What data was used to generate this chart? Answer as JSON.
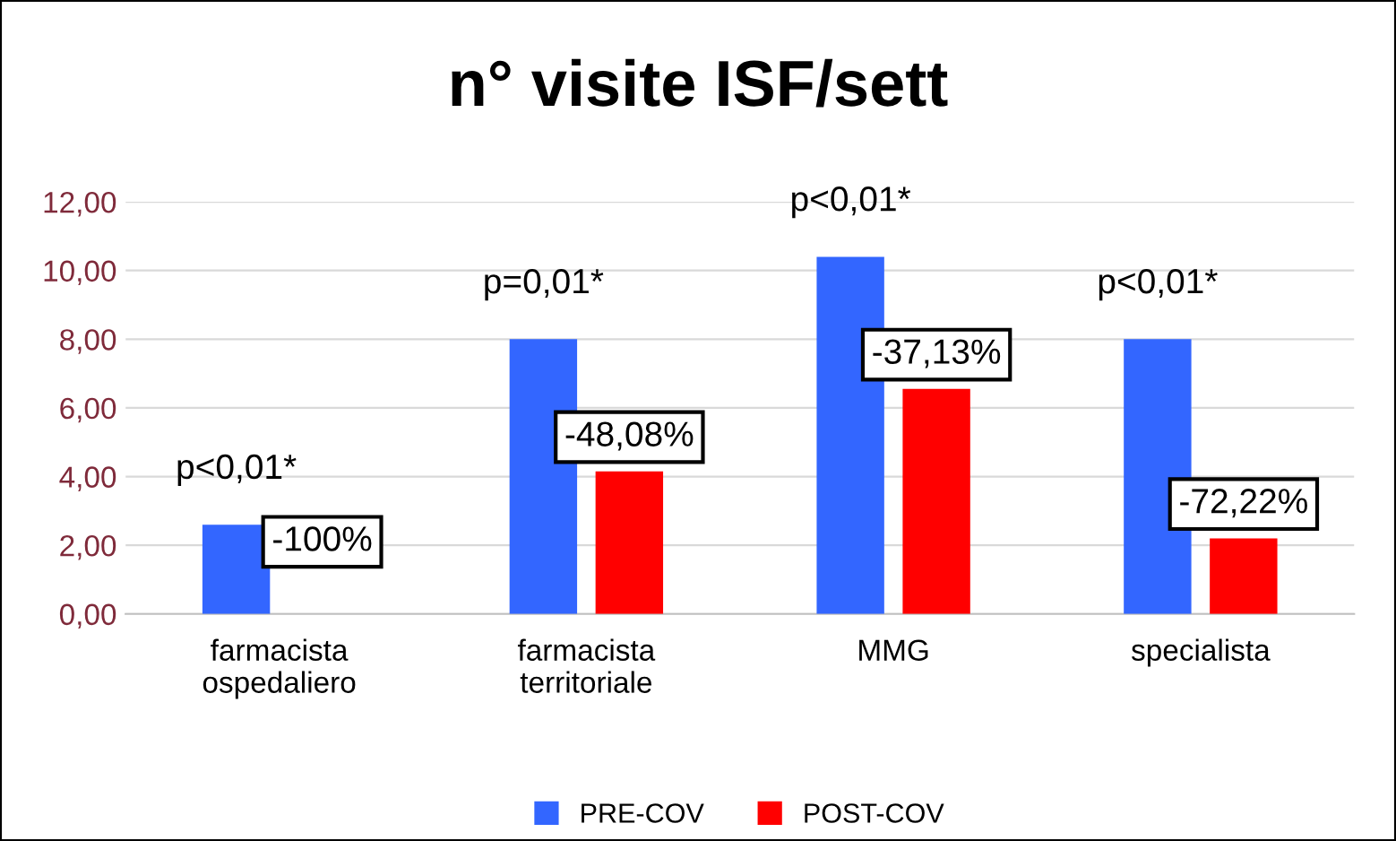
{
  "chart_data": {
    "type": "bar",
    "title": "n° visite ISF/sett",
    "categories": [
      "farmacista\nospedaliero",
      "farmacista\nterritoriale",
      "MMG",
      "specialista"
    ],
    "series": [
      {
        "name": "PRE-COV",
        "color": "#3366ff",
        "values": [
          2.6,
          8.0,
          10.4,
          8.0
        ]
      },
      {
        "name": "POST-COV",
        "color": "#ff0000",
        "values": [
          0,
          4.15,
          6.55,
          2.2
        ]
      }
    ],
    "ylim": [
      0,
      12
    ],
    "yticks": [
      {
        "value": 0,
        "label": "0,00"
      },
      {
        "value": 2,
        "label": "2,00"
      },
      {
        "value": 4,
        "label": "4,00"
      },
      {
        "value": 6,
        "label": "6,00"
      },
      {
        "value": 8,
        "label": "8,00"
      },
      {
        "value": 10,
        "label": "10,00"
      },
      {
        "value": 12,
        "label": "12,00"
      }
    ],
    "annotations": [
      "p<0,01*",
      "p=0,01*",
      "p<0,01*",
      "p<0,01*",
      "-100%",
      "-48,08%",
      "-37,13%",
      "-72,22%"
    ],
    "grid": "y",
    "legend": "bottom"
  }
}
